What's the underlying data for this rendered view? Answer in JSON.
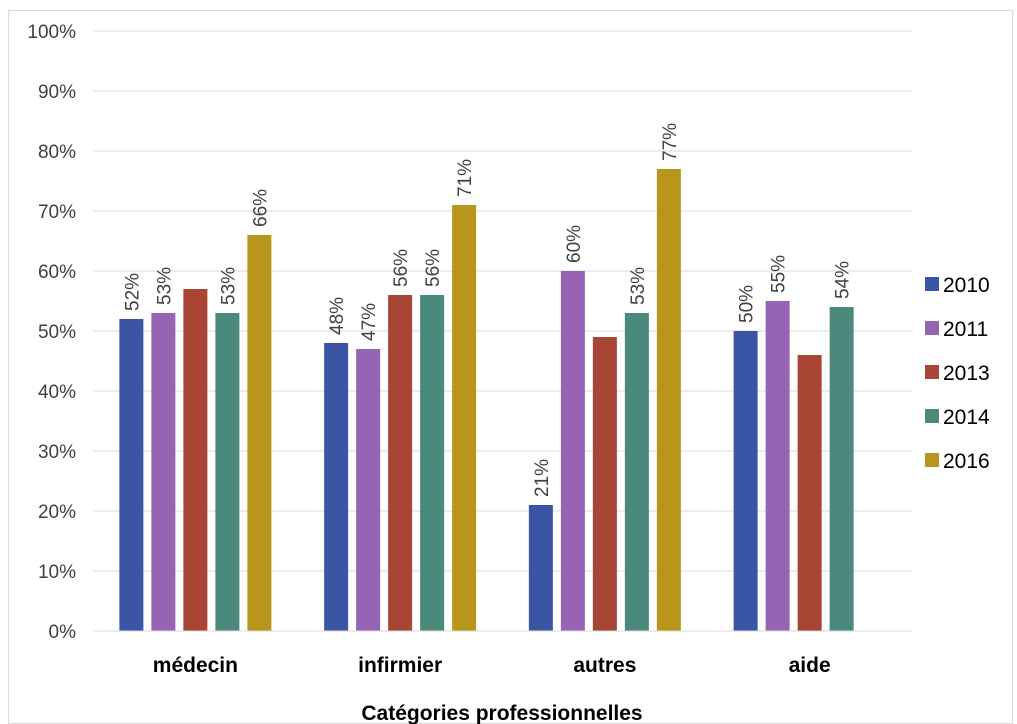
{
  "chart_data": {
    "type": "bar",
    "title": "",
    "xlabel": "Catégories professionnelles",
    "ylabel": "",
    "ylim": [
      0,
      1
    ],
    "y_ticks": [
      "0%",
      "10%",
      "20%",
      "30%",
      "40%",
      "50%",
      "60%",
      "70%",
      "80%",
      "90%",
      "100%"
    ],
    "grid": true,
    "legend_position": "right",
    "categories": [
      "médecin",
      "infirmier",
      "autres",
      "aide"
    ],
    "series": [
      {
        "name": "2010",
        "color": "#3b55a5",
        "values": [
          0.52,
          0.48,
          0.21,
          0.5
        ],
        "labels": [
          "52%",
          "48%",
          "21%",
          "50%"
        ]
      },
      {
        "name": "2011",
        "color": "#9664b3",
        "values": [
          0.53,
          0.47,
          0.6,
          0.55
        ],
        "labels": [
          "53%",
          "47%",
          "60%",
          "55%"
        ]
      },
      {
        "name": "2013",
        "color": "#a94534",
        "values": [
          0.57,
          0.56,
          0.49,
          0.46
        ],
        "labels": [
          "",
          "56%",
          "",
          ""
        ]
      },
      {
        "name": "2014",
        "color": "#4a897c",
        "values": [
          0.53,
          0.56,
          0.53,
          0.54
        ],
        "labels": [
          "53%",
          "56%",
          "53%",
          "54%"
        ]
      },
      {
        "name": "2016",
        "color": "#b8961e",
        "values": [
          0.66,
          0.71,
          0.77,
          null
        ],
        "labels": [
          "66%",
          "71%",
          "77%",
          ""
        ]
      }
    ]
  }
}
